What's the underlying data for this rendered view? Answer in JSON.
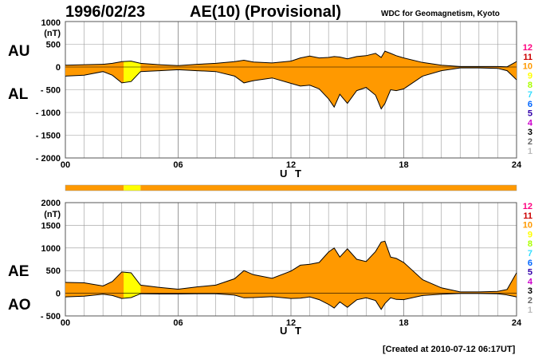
{
  "header": {
    "date": "1996/02/23",
    "title": "AE(10) (Provisional)",
    "organization": "WDC for Geomagnetism, Kyoto",
    "created": "[Created at 2010-07-12 06:17UT]"
  },
  "colors": {
    "orange": "#ff9900",
    "yellow": "#ffff00",
    "grid": "#999999"
  },
  "chart_data": [
    {
      "type": "area",
      "name": "AU/AL panel",
      "left_labels": [
        "AU",
        "AL"
      ],
      "xlabel": "U T",
      "ylabel": "(nT)",
      "y_ticks": [
        1000,
        500,
        0,
        -500,
        -1000,
        -1500,
        -2000
      ],
      "y_tick_labels": [
        "1000",
        "500",
        "0",
        "- 500",
        "- 1000",
        "- 1500",
        "- 2000"
      ],
      "ylim": [
        -2000,
        1000
      ],
      "xlim": [
        0,
        24
      ],
      "x_tick_labels": [
        "00",
        "06",
        "12",
        "18",
        "24"
      ],
      "grid": true,
      "x": [
        0,
        1,
        2,
        2.5,
        3,
        3.5,
        4,
        5,
        6,
        7,
        8,
        9,
        9.5,
        10,
        11,
        12,
        12.5,
        13,
        13.5,
        14,
        14.3,
        14.6,
        15,
        15.5,
        16,
        16.5,
        16.8,
        17,
        17.3,
        17.6,
        18,
        19,
        20,
        21,
        22,
        23,
        23.5,
        24
      ],
      "series": [
        {
          "name": "AU",
          "values": [
            40,
            50,
            60,
            80,
            120,
            130,
            80,
            50,
            30,
            60,
            80,
            120,
            150,
            110,
            90,
            130,
            200,
            240,
            200,
            210,
            230,
            220,
            180,
            230,
            250,
            300,
            210,
            350,
            300,
            250,
            200,
            100,
            40,
            10,
            10,
            10,
            5,
            120
          ]
        },
        {
          "name": "AL",
          "values": [
            -200,
            -180,
            -100,
            -180,
            -350,
            -320,
            -100,
            -80,
            -60,
            -80,
            -100,
            -200,
            -350,
            -300,
            -240,
            -360,
            -420,
            -400,
            -480,
            -700,
            -880,
            -600,
            -800,
            -520,
            -450,
            -620,
            -920,
            -800,
            -500,
            -520,
            -480,
            -200,
            -80,
            -20,
            -20,
            -30,
            -80,
            -280
          ]
        }
      ]
    },
    {
      "type": "area",
      "name": "AE/AO panel",
      "left_labels": [
        "AE",
        "AO"
      ],
      "xlabel": "U T",
      "ylabel": "(nT)",
      "y_ticks": [
        2000,
        1500,
        1000,
        500,
        0,
        -500
      ],
      "y_tick_labels": [
        "2000",
        "1500",
        "1000",
        "500",
        "0",
        "- 500"
      ],
      "ylim": [
        -500,
        2000
      ],
      "xlim": [
        0,
        24
      ],
      "x_tick_labels": [
        "00",
        "06",
        "12",
        "18",
        "24"
      ],
      "grid": true,
      "x": [
        0,
        1,
        2,
        2.5,
        3,
        3.5,
        4,
        5,
        6,
        7,
        8,
        9,
        9.5,
        10,
        11,
        12,
        12.5,
        13,
        13.5,
        14,
        14.3,
        14.6,
        15,
        15.5,
        16,
        16.5,
        16.8,
        17,
        17.3,
        17.6,
        18,
        19,
        20,
        21,
        22,
        23,
        23.5,
        24
      ],
      "series": [
        {
          "name": "AE",
          "values": [
            240,
            230,
            160,
            260,
            470,
            450,
            180,
            130,
            90,
            140,
            180,
            320,
            500,
            410,
            330,
            490,
            620,
            640,
            680,
            910,
            1000,
            800,
            980,
            750,
            700,
            920,
            1130,
            1150,
            800,
            770,
            680,
            300,
            120,
            30,
            30,
            40,
            85,
            450
          ]
        },
        {
          "name": "AO",
          "values": [
            -80,
            -65,
            -20,
            -50,
            -115,
            -95,
            -10,
            -15,
            -15,
            -10,
            -10,
            -40,
            -100,
            -95,
            -75,
            -115,
            -110,
            -80,
            -140,
            -245,
            -325,
            -190,
            -310,
            -145,
            -100,
            -160,
            -355,
            -225,
            -100,
            -135,
            -140,
            -50,
            -20,
            -5,
            -5,
            -10,
            -37,
            -80
          ]
        }
      ]
    }
  ],
  "index_strip": {
    "segments": [
      {
        "from": 0,
        "to": 3.1,
        "level": "orange"
      },
      {
        "from": 3.1,
        "to": 4.0,
        "level": "yellow"
      },
      {
        "from": 4.0,
        "to": 24,
        "level": "orange"
      }
    ]
  },
  "station_key": {
    "numbers": [
      "12",
      "11",
      "10",
      "9",
      "8",
      "7",
      "6",
      "5",
      "4",
      "3",
      "2",
      "1"
    ],
    "colors": [
      "#ff0080",
      "#cc0000",
      "#ff9900",
      "#ffff00",
      "#aaff00",
      "#33ddff",
      "#0066ff",
      "#3300aa",
      "#cc00cc",
      "#000000",
      "#666666",
      "#bbbbbb"
    ]
  }
}
